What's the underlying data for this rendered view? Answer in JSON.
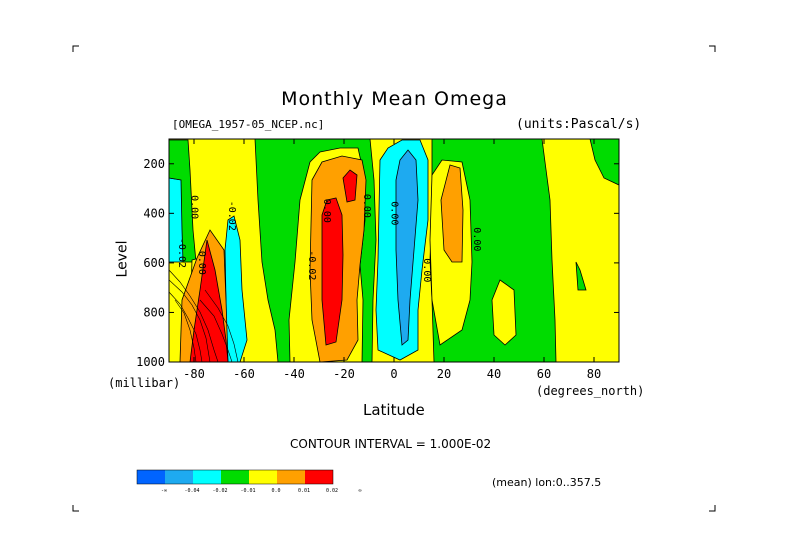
{
  "chart_data": {
    "type": "heatmap",
    "title": "Monthly Mean Omega",
    "subtitle_left": "[OMEGA_1957-05_NCEP.nc]",
    "subtitle_right": "(units:Pascal/s)",
    "xlabel": "Latitude",
    "x_units": "(degrees_north)",
    "ylabel": "Level",
    "y_units": "(millibar)",
    "xlim": [
      -90,
      90
    ],
    "ylim": [
      1000,
      100
    ],
    "x_ticks": [
      -80,
      -60,
      -40,
      -20,
      0,
      20,
      40,
      60,
      80
    ],
    "y_ticks": [
      200,
      400,
      600,
      800,
      1000
    ],
    "contour_interval": "CONTOUR INTERVAL = 1.000E-02",
    "mean_info": "(mean) lon:0..357.5",
    "color_levels": [
      {
        "label": "-∞",
        "color": "#0064ff"
      },
      {
        "label": "-0.04",
        "color": "#1eaaf0"
      },
      {
        "label": "-0.02",
        "color": "#00ffff"
      },
      {
        "label": "-0.01",
        "color": "#00dc00"
      },
      {
        "label": "0.0",
        "color": "#ffff00"
      },
      {
        "label": "0.01",
        "color": "#ffa000"
      },
      {
        "label": "0.02",
        "color": "#ff0000"
      },
      {
        "label": "∞",
        "color": ""
      }
    ],
    "contour_labels": [
      "0.00",
      "-0.02",
      "-0.02",
      "0.00",
      "-0.02",
      "0.00",
      "0.00",
      "0.00",
      "0.00",
      "0.00"
    ]
  }
}
